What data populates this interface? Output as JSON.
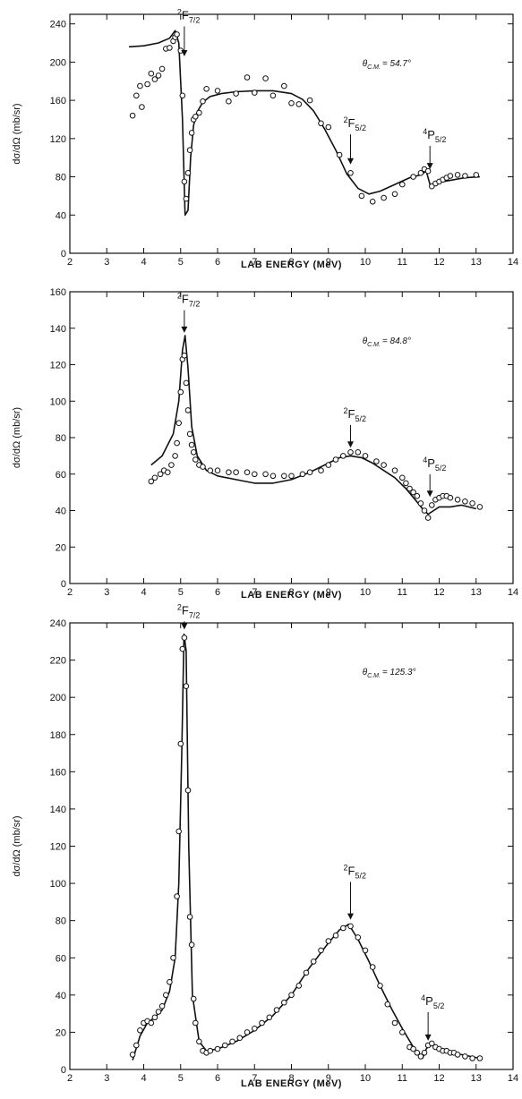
{
  "chart_data": [
    {
      "type": "scatter",
      "panel": "top",
      "xlabel": "LAB ENERGY (MeV)",
      "ylabel": "dσ/dΩ (mb/sr)",
      "xlim": [
        2,
        14
      ],
      "ylim": [
        0,
        250
      ],
      "x_ticks": [
        2,
        3,
        4,
        5,
        6,
        7,
        8,
        9,
        10,
        11,
        12,
        13,
        14
      ],
      "y_ticks": [
        0,
        40,
        80,
        120,
        160,
        200,
        240
      ],
      "angle_label": "θ",
      "angle_sub": "C.M.",
      "angle_value": "= 54.7°",
      "grid": false,
      "series": [
        {
          "kind": "points",
          "x": [
            3.7,
            3.8,
            3.9,
            3.95,
            4.1,
            4.2,
            4.3,
            4.4,
            4.5,
            4.6,
            4.7,
            4.8,
            4.85,
            4.9,
            5.0,
            5.05,
            5.1,
            5.15,
            5.2,
            5.25,
            5.3,
            5.35,
            5.4,
            5.5,
            5.6,
            5.7,
            6.0,
            6.3,
            6.5,
            6.8,
            7.0,
            7.3,
            7.5,
            7.8,
            8.0,
            8.2,
            8.5,
            8.8,
            9.0,
            9.3,
            9.6,
            9.9,
            10.2,
            10.5,
            10.8,
            11.0,
            11.3,
            11.5,
            11.6,
            11.7,
            11.8,
            11.9,
            12.0,
            12.1,
            12.2,
            12.3,
            12.5,
            12.7,
            13.0
          ],
          "y": [
            144,
            165,
            175,
            153,
            177,
            188,
            182,
            186,
            193,
            214,
            215,
            222,
            226,
            229,
            212,
            165,
            75,
            57,
            84,
            108,
            126,
            140,
            143,
            147,
            159,
            172,
            170,
            159,
            167,
            184,
            168,
            183,
            165,
            175,
            157,
            156,
            160,
            136,
            132,
            103,
            84,
            60,
            54,
            58,
            62,
            72,
            80,
            84,
            88,
            86,
            70,
            73,
            75,
            77,
            79,
            81,
            82,
            81,
            82
          ]
        },
        {
          "kind": "curve",
          "x": [
            3.6,
            4.0,
            4.4,
            4.7,
            4.85,
            4.95,
            5.05,
            5.12,
            5.2,
            5.27,
            5.35,
            5.45,
            5.6,
            5.8,
            6.1,
            6.5,
            7.0,
            7.5,
            8.0,
            8.3,
            8.6,
            8.9,
            9.2,
            9.5,
            9.8,
            10.1,
            10.4,
            10.8,
            11.2,
            11.5,
            11.65,
            11.75,
            11.9,
            12.1,
            12.4,
            12.7,
            13.1
          ],
          "y": [
            216,
            217,
            220,
            225,
            233,
            220,
            140,
            40,
            45,
            100,
            134,
            148,
            158,
            164,
            167,
            169,
            170,
            170,
            167,
            161,
            149,
            130,
            108,
            83,
            68,
            62,
            65,
            72,
            79,
            82,
            86,
            72,
            72,
            75,
            77,
            79,
            80
          ]
        }
      ],
      "annotations": [
        {
          "main": "F",
          "pre": "2",
          "sub": "7/2",
          "x": 5.1,
          "y_top": 228,
          "y_tip": 205
        },
        {
          "main": "F",
          "pre": "2",
          "sub": "5/2",
          "x": 9.6,
          "y_top": 115,
          "y_tip": 92
        },
        {
          "main": "P",
          "pre": "4",
          "sub": "5/2",
          "x": 11.75,
          "y_top": 103,
          "y_tip": 87
        }
      ]
    },
    {
      "type": "scatter",
      "panel": "middle",
      "xlabel": "LAB ENERGY (MeV)",
      "ylabel": "dσ/dΩ (mb/sr)",
      "xlim": [
        2,
        14
      ],
      "ylim": [
        0,
        160
      ],
      "x_ticks": [
        2,
        3,
        4,
        5,
        6,
        7,
        8,
        9,
        10,
        11,
        12,
        13,
        14
      ],
      "y_ticks": [
        0,
        20,
        40,
        60,
        80,
        100,
        120,
        140,
        160
      ],
      "angle_label": "θ",
      "angle_sub": "C.M.",
      "angle_value": "= 84.8°",
      "grid": false,
      "series": [
        {
          "kind": "points",
          "x": [
            4.2,
            4.3,
            4.45,
            4.55,
            4.65,
            4.75,
            4.85,
            4.9,
            4.95,
            5.0,
            5.05,
            5.1,
            5.15,
            5.2,
            5.25,
            5.3,
            5.35,
            5.4,
            5.5,
            5.6,
            5.8,
            6.0,
            6.3,
            6.5,
            6.8,
            7.0,
            7.3,
            7.5,
            7.8,
            8.0,
            8.3,
            8.5,
            8.8,
            9.0,
            9.2,
            9.4,
            9.6,
            9.8,
            10.0,
            10.3,
            10.5,
            10.8,
            11.0,
            11.1,
            11.2,
            11.3,
            11.4,
            11.5,
            11.6,
            11.7,
            11.8,
            11.9,
            12.0,
            12.1,
            12.2,
            12.3,
            12.5,
            12.7,
            12.9,
            13.1
          ],
          "y": [
            56,
            58,
            60,
            62,
            61,
            65,
            70,
            77,
            88,
            105,
            123,
            125,
            110,
            95,
            82,
            76,
            72,
            68,
            65,
            64,
            62,
            62,
            61,
            61,
            61,
            60,
            60,
            59,
            59,
            59,
            60,
            61,
            62,
            65,
            68,
            70,
            72,
            72,
            70,
            67,
            65,
            62,
            58,
            55,
            52,
            50,
            48,
            44,
            40,
            36,
            43,
            46,
            47,
            48,
            48,
            47,
            46,
            45,
            44,
            42
          ]
        },
        {
          "kind": "curve",
          "x": [
            4.2,
            4.5,
            4.8,
            4.95,
            5.05,
            5.12,
            5.2,
            5.3,
            5.45,
            5.7,
            6.0,
            6.5,
            7.0,
            7.5,
            8.0,
            8.5,
            9.0,
            9.3,
            9.6,
            9.9,
            10.2,
            10.5,
            10.8,
            11.1,
            11.35,
            11.55,
            11.7,
            11.85,
            12.0,
            12.3,
            12.6,
            13.0
          ],
          "y": [
            65,
            70,
            82,
            100,
            128,
            136,
            118,
            86,
            70,
            62,
            59,
            57,
            55,
            55,
            57,
            61,
            66,
            69,
            70,
            69,
            66,
            62,
            58,
            52,
            46,
            41,
            38,
            40,
            42,
            42,
            43,
            41
          ]
        }
      ],
      "annotations": [
        {
          "main": "F",
          "pre": "2",
          "sub": "7/2",
          "x": 5.1,
          "y_top": 145,
          "y_tip": 137
        },
        {
          "main": "F",
          "pre": "2",
          "sub": "5/2",
          "x": 9.6,
          "y_top": 82,
          "y_tip": 74
        },
        {
          "main": "P",
          "pre": "4",
          "sub": "5/2",
          "x": 11.75,
          "y_top": 55,
          "y_tip": 47
        }
      ]
    },
    {
      "type": "scatter",
      "panel": "bottom",
      "xlabel": "LAB ENERGY (MeV)",
      "ylabel": "dσ/dΩ (mb/sr)",
      "xlim": [
        2,
        14
      ],
      "ylim": [
        0,
        240
      ],
      "x_ticks": [
        2,
        3,
        4,
        5,
        6,
        7,
        8,
        9,
        10,
        11,
        12,
        13,
        14
      ],
      "y_ticks": [
        0,
        20,
        40,
        60,
        80,
        100,
        120,
        140,
        160,
        180,
        200,
        220,
        240
      ],
      "angle_label": "θ",
      "angle_sub": "C.M.",
      "angle_value": "= 125.3°",
      "grid": false,
      "series": [
        {
          "kind": "points",
          "x": [
            3.7,
            3.8,
            3.9,
            4.0,
            4.1,
            4.2,
            4.3,
            4.4,
            4.5,
            4.6,
            4.7,
            4.8,
            4.9,
            4.95,
            5.0,
            5.05,
            5.1,
            5.15,
            5.2,
            5.25,
            5.3,
            5.35,
            5.4,
            5.5,
            5.6,
            5.7,
            5.8,
            6.0,
            6.2,
            6.4,
            6.6,
            6.8,
            7.0,
            7.2,
            7.4,
            7.6,
            7.8,
            8.0,
            8.2,
            8.4,
            8.6,
            8.8,
            9.0,
            9.2,
            9.4,
            9.6,
            9.8,
            10.0,
            10.2,
            10.4,
            10.6,
            10.8,
            11.0,
            11.2,
            11.3,
            11.4,
            11.5,
            11.6,
            11.7,
            11.8,
            11.9,
            12.0,
            12.1,
            12.2,
            12.3,
            12.4,
            12.5,
            12.7,
            12.9,
            13.1
          ],
          "y": [
            8,
            13,
            21,
            25,
            26,
            25,
            28,
            31,
            34,
            40,
            47,
            60,
            93,
            128,
            175,
            226,
            232,
            206,
            150,
            82,
            67,
            38,
            25,
            15,
            10,
            9,
            10,
            11,
            13,
            15,
            17,
            20,
            22,
            25,
            28,
            32,
            36,
            40,
            45,
            52,
            58,
            64,
            69,
            72,
            76,
            77,
            71,
            64,
            55,
            45,
            35,
            25,
            20,
            12,
            11,
            9,
            7,
            9,
            13,
            14,
            12,
            11,
            10,
            10,
            9,
            9,
            8,
            7,
            6,
            6
          ]
        },
        {
          "kind": "curve",
          "x": [
            3.7,
            3.9,
            4.1,
            4.3,
            4.5,
            4.7,
            4.85,
            4.95,
            5.03,
            5.09,
            5.15,
            5.22,
            5.32,
            5.5,
            5.7,
            6.0,
            6.5,
            7.0,
            7.5,
            8.0,
            8.5,
            9.0,
            9.3,
            9.55,
            9.8,
            10.1,
            10.4,
            10.7,
            11.0,
            11.3,
            11.55,
            11.65,
            11.75,
            11.9,
            12.2,
            12.6,
            13.1
          ],
          "y": [
            5,
            18,
            25,
            28,
            32,
            42,
            60,
            100,
            170,
            234,
            225,
            120,
            40,
            15,
            10,
            11,
            15,
            21,
            29,
            40,
            55,
            68,
            75,
            78,
            70,
            58,
            45,
            33,
            22,
            12,
            6,
            11,
            14,
            12,
            10,
            8,
            6
          ]
        }
      ],
      "annotations": [
        {
          "main": "F",
          "pre": "2",
          "sub": "7/2",
          "x": 5.1,
          "y_top": 236,
          "y_tip": 236
        },
        {
          "main": "F",
          "pre": "2",
          "sub": "5/2",
          "x": 9.6,
          "y_top": 96,
          "y_tip": 80
        },
        {
          "main": "P",
          "pre": "4",
          "sub": "5/2",
          "x": 11.7,
          "y_top": 26,
          "y_tip": 15
        }
      ]
    }
  ]
}
